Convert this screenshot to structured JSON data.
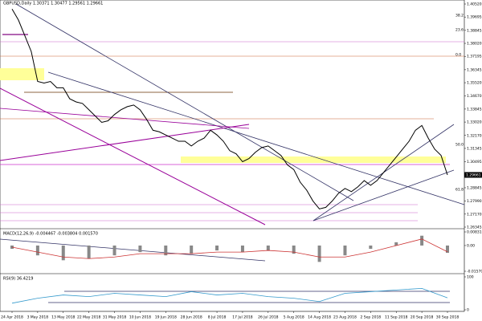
{
  "chart_data": {
    "type": "line",
    "title": "GBPUSD,Daily  1.30371 1.30477 1.29561 1.29661",
    "categories": [
      "24 Apr 2018",
      null,
      null,
      null,
      "3 May 2018",
      null,
      null,
      null,
      "13 May 2018",
      null,
      null,
      null,
      "22 May 2018",
      null,
      null,
      null,
      "31 May 2018",
      null,
      null,
      null,
      "10 Jun 2018",
      null,
      null,
      null,
      "19 Jun 2018",
      null,
      null,
      null,
      "28 Jun 2018",
      null,
      null,
      null,
      "8 Jul 2018",
      null,
      null,
      null,
      "17 Jul 2018",
      null,
      null,
      null,
      "26 Jul 2018",
      null,
      null,
      null,
      "5 Aug 2018",
      null,
      null,
      null,
      "14 Aug 2018",
      null,
      null,
      null,
      "23 Aug 2018",
      null,
      null,
      null,
      "2 Sep 2018",
      null,
      null,
      null,
      "11 Sep 2018",
      null,
      null,
      null,
      "20 Sep 2018",
      null,
      null,
      null,
      "30 Sep 2018"
    ],
    "series": [
      {
        "name": "GBPUSD",
        "color": "#000000",
        "values": [
          1.402,
          1.395,
          1.385,
          1.375,
          1.356,
          1.355,
          1.356,
          1.352,
          1.352,
          1.345,
          1.343,
          1.342,
          1.338,
          1.334,
          1.33,
          1.331,
          1.335,
          1.338,
          1.34,
          1.341,
          1.338,
          1.332,
          1.325,
          1.324,
          1.322,
          1.32,
          1.318,
          1.318,
          1.315,
          1.318,
          1.32,
          1.325,
          1.322,
          1.318,
          1.312,
          1.31,
          1.305,
          1.307,
          1.311,
          1.314,
          1.315,
          1.312,
          1.309,
          1.303,
          1.3,
          1.292,
          1.287,
          1.28,
          1.275,
          1.276,
          1.28,
          1.285,
          1.288,
          1.286,
          1.289,
          1.293,
          1.29,
          1.293,
          1.298,
          1.303,
          1.308,
          1.313,
          1.318,
          1.325,
          1.328,
          1.32,
          1.313,
          1.309,
          1.29661
        ]
      }
    ],
    "ylim": [
      1.26345,
      1.4052
    ],
    "yticks": [
      {
        "value": 1.4052,
        "label": "1.40520"
      },
      1.39695,
      1.38845,
      {
        "value": 1.3802,
        "label": "1.38020"
      },
      1.37195,
      1.36345,
      {
        "value": 1.3552,
        "label": "1.35520"
      },
      {
        "value": 1.3467,
        "label": "1.34670"
      },
      1.33845,
      {
        "value": 1.3302,
        "label": "1.33020"
      },
      {
        "value": 1.3217,
        "label": "1.32170"
      },
      1.31345,
      1.30495,
      1.28845,
      {
        "value": 1.2799,
        "label": "1.27990"
      },
      {
        "value": 1.2717,
        "label": "1.27170"
      },
      1.26345
    ],
    "current_price": 1.29661,
    "fib_labels": [
      "38.2",
      "23.6",
      "0.0",
      "50.0",
      "61.8"
    ],
    "macd": {
      "title": "MACD(12,26,9) -0.004467 -0.003804 0.001570",
      "ylim": [
        -0.015707,
        0.008315
      ],
      "yticks": [
        0.008315,
        {
          "value": 0,
          "label": "0.00"
        },
        -0.015707
      ],
      "main": [
        -0.002,
        -0.006,
        -0.009,
        -0.008,
        -0.006,
        -0.004,
        -0.006,
        -0.005,
        -0.003,
        -0.004,
        -0.003,
        -0.005,
        -0.01,
        -0.006,
        -0.002,
        0.002,
        0.006,
        -0.004467
      ],
      "signal": [
        -0.001,
        -0.004,
        -0.007,
        -0.008,
        -0.007,
        -0.005,
        -0.005,
        -0.005,
        -0.004,
        -0.004,
        -0.003,
        -0.004,
        -0.007,
        -0.007,
        -0.004,
        0.0,
        0.004,
        -0.003804
      ]
    },
    "rsi": {
      "title": "RSI(9) 36.4219",
      "ylim": [
        0,
        100
      ],
      "yticks": [
        100,
        0
      ],
      "values": [
        20,
        35,
        45,
        40,
        50,
        45,
        40,
        55,
        45,
        50,
        40,
        35,
        25,
        50,
        55,
        60,
        65,
        36.4219
      ]
    }
  }
}
